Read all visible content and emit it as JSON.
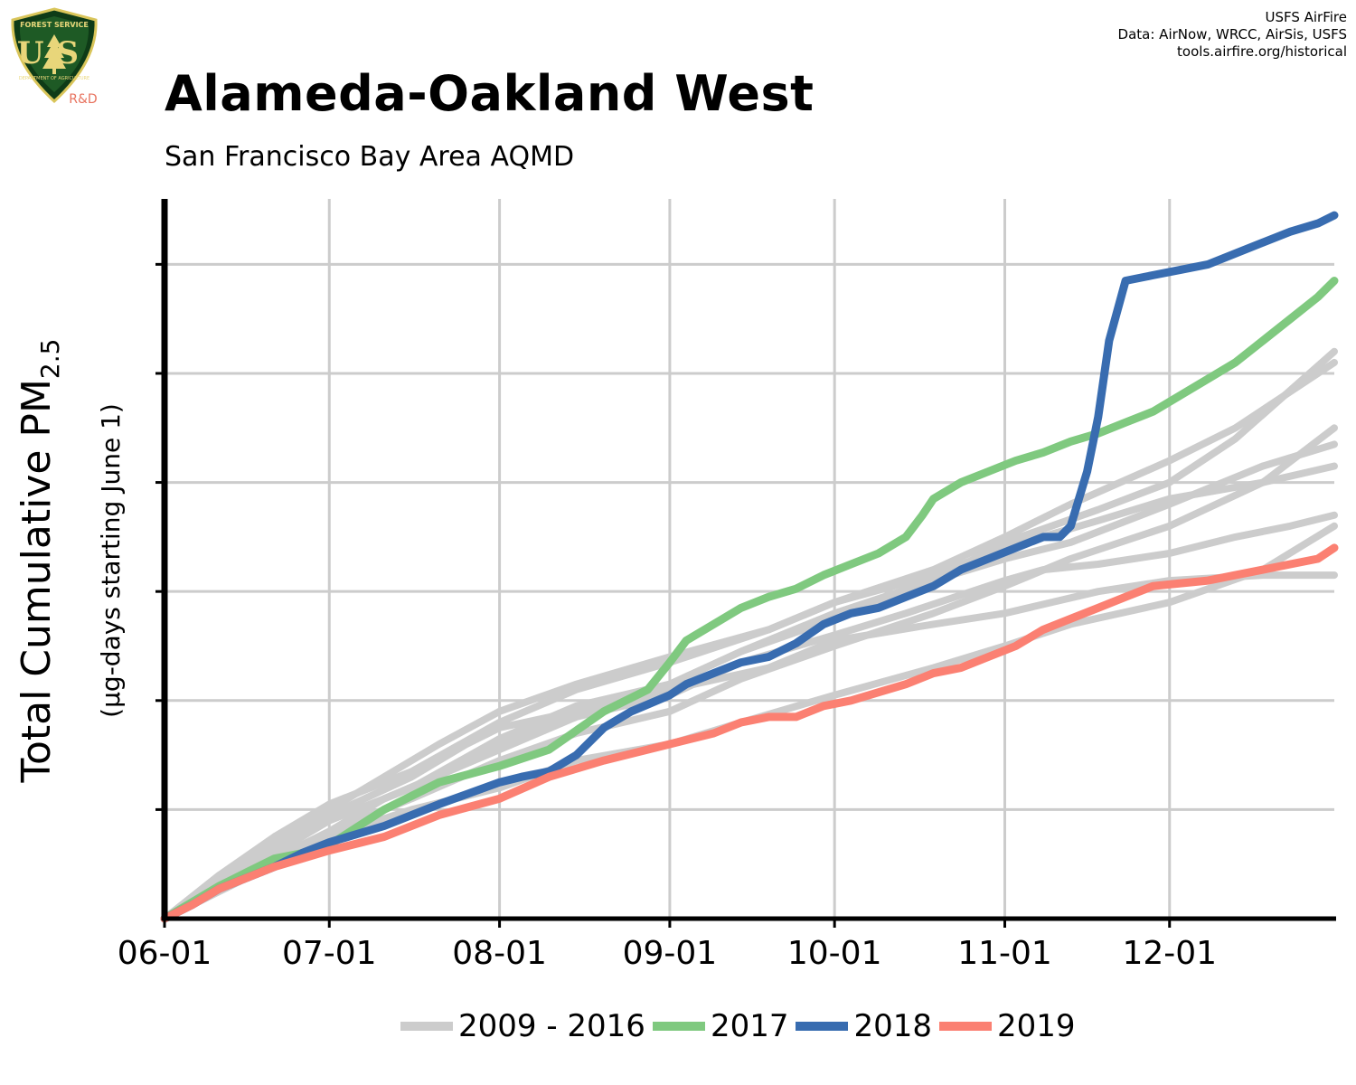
{
  "branding": {
    "logo_text_top": "FOREST SERVICE",
    "logo_text_us": "US",
    "logo_text_bottom": "DEPARTMENT OF AGRICULTURE",
    "logo_suffix": "R&D",
    "attribution": [
      "USFS AirFire",
      "Data: AirNow, WRCC, AirSis, USFS",
      "tools.airfire.org/historical"
    ]
  },
  "colors": {
    "history": "#cccccc",
    "y2017": "#7fc97f",
    "y2018": "#386cb0",
    "y2019": "#fb8072",
    "grid": "#cccccc",
    "axis": "#000000"
  },
  "chart_data": {
    "type": "line",
    "title": "Alameda-Oakland West",
    "subtitle": "San Francisco Bay Area AQMD",
    "ylabel_main": "Total Cumulative PM",
    "ylabel_sub": "2.5",
    "ylabel_units": "(µg-days starting June 1)",
    "xlabel": "",
    "x_ticks": [
      "06-01",
      "07-01",
      "08-01",
      "09-01",
      "10-01",
      "11-01",
      "12-01"
    ],
    "x_tick_days": [
      0,
      30,
      61,
      92,
      122,
      153,
      183
    ],
    "xlim_days": [
      0,
      213
    ],
    "ylim": [
      0,
      1320
    ],
    "y_gridlines": [
      200,
      400,
      600,
      800,
      1000,
      1200
    ],
    "y_tick_labels_shown": false,
    "grid": true,
    "legend": {
      "position": "bottom",
      "entries": [
        {
          "label": "2009 - 2016",
          "color": "#cccccc"
        },
        {
          "label": "2017",
          "color": "#7fc97f"
        },
        {
          "label": "2018",
          "color": "#386cb0"
        },
        {
          "label": "2019",
          "color": "#fb8072"
        }
      ]
    },
    "history_series": [
      {
        "x": [
          0,
          10,
          20,
          30,
          40,
          61,
          75,
          92,
          105,
          122,
          135,
          153,
          160,
          170,
          183,
          195,
          205,
          213
        ],
        "y": [
          0,
          60,
          110,
          160,
          220,
          310,
          370,
          410,
          470,
          520,
          560,
          620,
          640,
          650,
          670,
          700,
          720,
          740
        ]
      },
      {
        "x": [
          0,
          10,
          20,
          30,
          45,
          61,
          75,
          92,
          105,
          122,
          140,
          153,
          165,
          183,
          200,
          213
        ],
        "y": [
          0,
          70,
          120,
          180,
          240,
          330,
          390,
          430,
          490,
          550,
          620,
          660,
          690,
          760,
          830,
          870
        ]
      },
      {
        "x": [
          0,
          10,
          20,
          30,
          40,
          50,
          61,
          75,
          92,
          110,
          122,
          140,
          153,
          170,
          183,
          200,
          213
        ],
        "y": [
          0,
          80,
          140,
          200,
          260,
          320,
          380,
          430,
          480,
          530,
          580,
          630,
          680,
          730,
          770,
          800,
          830
        ]
      },
      {
        "x": [
          0,
          10,
          20,
          30,
          45,
          61,
          75,
          92,
          105,
          122,
          140,
          153,
          165,
          183,
          200,
          213
        ],
        "y": [
          0,
          50,
          100,
          150,
          200,
          240,
          290,
          320,
          360,
          410,
          460,
          500,
          540,
          580,
          640,
          720
        ]
      },
      {
        "x": [
          0,
          10,
          20,
          30,
          45,
          55,
          61,
          75,
          92,
          110,
          122,
          140,
          153,
          170,
          183,
          200,
          213
        ],
        "y": [
          0,
          70,
          130,
          190,
          260,
          320,
          350,
          380,
          420,
          460,
          510,
          540,
          560,
          600,
          620,
          630,
          630
        ]
      },
      {
        "x": [
          0,
          10,
          20,
          30,
          45,
          61,
          75,
          92,
          105,
          122,
          140,
          153,
          165,
          183,
          200,
          213
        ],
        "y": [
          0,
          60,
          110,
          160,
          220,
          290,
          340,
          380,
          440,
          500,
          560,
          610,
          660,
          720,
          800,
          900
        ]
      },
      {
        "x": [
          0,
          10,
          20,
          30,
          45,
          61,
          75,
          92,
          110,
          122,
          140,
          153,
          165,
          183,
          195,
          213
        ],
        "y": [
          0,
          80,
          150,
          210,
          270,
          360,
          420,
          470,
          530,
          580,
          640,
          700,
          760,
          840,
          900,
          1020
        ]
      },
      {
        "x": [
          0,
          10,
          20,
          30,
          45,
          61,
          75,
          92,
          105,
          122,
          140,
          153,
          170,
          183,
          195,
          213
        ],
        "y": [
          0,
          70,
          130,
          180,
          240,
          320,
          380,
          430,
          490,
          560,
          620,
          690,
          750,
          800,
          880,
          1040
        ]
      }
    ],
    "series": [
      {
        "name": "2017",
        "color": "#7fc97f",
        "x": [
          0,
          5,
          10,
          15,
          20,
          25,
          30,
          40,
          50,
          61,
          70,
          80,
          88,
          92,
          95,
          100,
          105,
          110,
          115,
          120,
          125,
          130,
          135,
          138,
          140,
          145,
          150,
          155,
          160,
          165,
          170,
          175,
          180,
          185,
          190,
          195,
          200,
          205,
          210,
          213
        ],
        "y": [
          0,
          30,
          60,
          85,
          110,
          120,
          135,
          200,
          250,
          280,
          310,
          380,
          420,
          470,
          510,
          540,
          570,
          590,
          605,
          630,
          650,
          670,
          700,
          740,
          770,
          800,
          820,
          840,
          855,
          875,
          890,
          910,
          930,
          960,
          990,
          1020,
          1060,
          1100,
          1140,
          1170
        ]
      },
      {
        "name": "2018",
        "color": "#386cb0",
        "x": [
          0,
          5,
          10,
          15,
          20,
          25,
          30,
          40,
          50,
          61,
          65,
          70,
          75,
          80,
          85,
          92,
          95,
          100,
          105,
          110,
          115,
          120,
          125,
          130,
          135,
          140,
          145,
          150,
          155,
          160,
          163,
          165,
          168,
          170,
          172,
          175,
          180,
          185,
          190,
          195,
          200,
          205,
          210,
          213
        ],
        "y": [
          0,
          25,
          55,
          75,
          95,
          120,
          140,
          170,
          210,
          250,
          260,
          270,
          300,
          350,
          380,
          410,
          430,
          450,
          470,
          480,
          505,
          540,
          560,
          570,
          590,
          610,
          640,
          660,
          680,
          700,
          700,
          720,
          820,
          920,
          1060,
          1170,
          1180,
          1190,
          1200,
          1220,
          1240,
          1260,
          1275,
          1290
        ]
      },
      {
        "name": "2019",
        "color": "#fb8072",
        "x": [
          0,
          5,
          10,
          15,
          20,
          25,
          30,
          40,
          50,
          61,
          70,
          80,
          92,
          100,
          105,
          110,
          115,
          120,
          125,
          130,
          135,
          140,
          145,
          150,
          155,
          160,
          165,
          170,
          175,
          180,
          185,
          190,
          195,
          200,
          205,
          210,
          213
        ],
        "y": [
          0,
          25,
          55,
          75,
          95,
          110,
          125,
          150,
          190,
          220,
          260,
          290,
          320,
          340,
          360,
          370,
          370,
          390,
          400,
          415,
          430,
          450,
          460,
          480,
          500,
          530,
          550,
          570,
          590,
          610,
          615,
          620,
          630,
          640,
          650,
          660,
          680
        ]
      }
    ]
  }
}
